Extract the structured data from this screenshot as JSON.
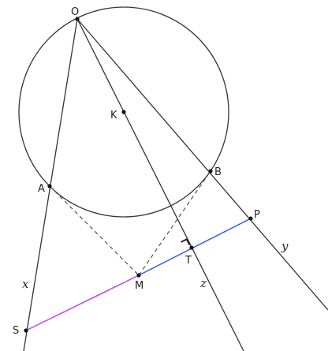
{
  "diagram": {
    "points": {
      "O": "O",
      "K": "K",
      "A": "A",
      "B": "B",
      "P": "P",
      "T": "T",
      "M": "M",
      "S": "S"
    },
    "lines": {
      "x": "x",
      "y": "y",
      "z": "z"
    },
    "colors": {
      "line": "#333333",
      "segment_PM": "#3355ee",
      "segment_MS": "#bb44ee",
      "dashed": "#444444",
      "point": "#111111"
    }
  }
}
